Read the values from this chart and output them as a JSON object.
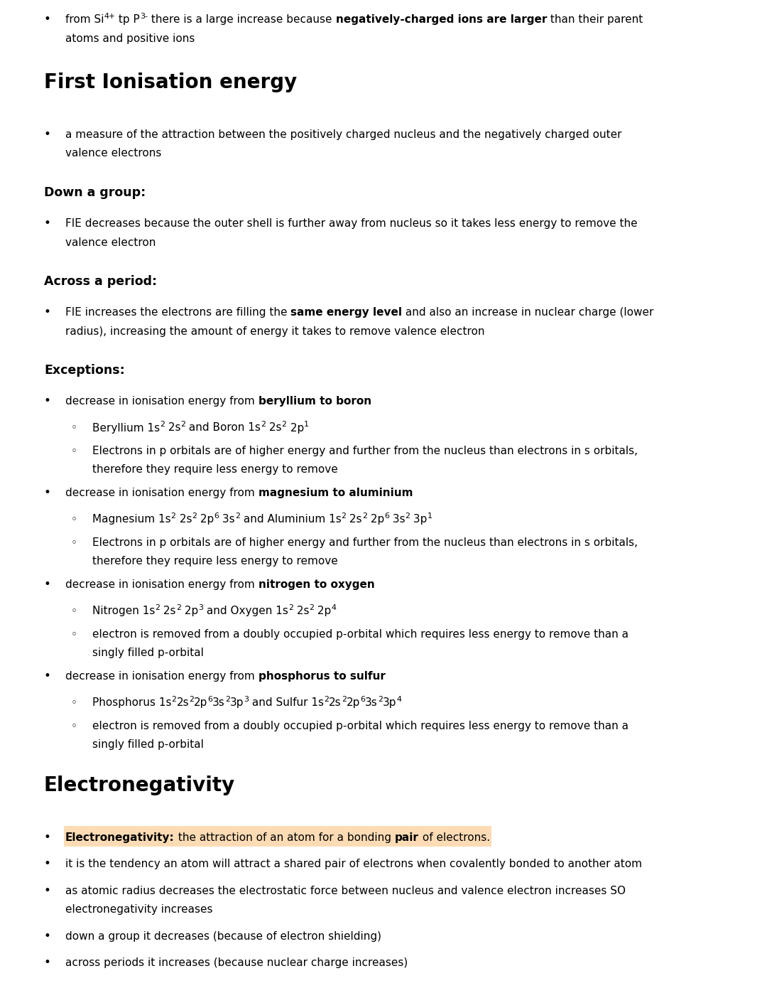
{
  "bg_color": "#ffffff",
  "sections": [
    {
      "type": "bullet",
      "parts": [
        {
          "text": "from Si",
          "style": "normal"
        },
        {
          "text": "4+",
          "style": "superscript"
        },
        {
          "text": " tp P",
          "style": "normal"
        },
        {
          "text": "3-",
          "style": "superscript"
        },
        {
          "text": " there is a large increase because ",
          "style": "normal"
        },
        {
          "text": "negatively-charged ions are larger",
          "style": "bold"
        },
        {
          "text": " than their parent",
          "style": "normal"
        }
      ],
      "line2_parts": [
        {
          "text": "atoms and positive ions",
          "style": "normal"
        }
      ]
    },
    {
      "type": "section_header",
      "text": "First Ionisation energy"
    },
    {
      "type": "bullet",
      "parts": [
        {
          "text": "a measure of the attraction between the positively charged nucleus and the negatively charged outer",
          "style": "normal"
        }
      ],
      "line2_parts": [
        {
          "text": "valence electrons",
          "style": "normal"
        }
      ]
    },
    {
      "type": "subsection_header",
      "text": "Down a group:"
    },
    {
      "type": "bullet",
      "parts": [
        {
          "text": "FIE decreases because the outer shell is further away from nucleus so it takes less energy to remove the",
          "style": "normal"
        }
      ],
      "line2_parts": [
        {
          "text": "valence electron",
          "style": "normal"
        }
      ]
    },
    {
      "type": "subsection_header",
      "text": "Across a period:"
    },
    {
      "type": "bullet",
      "parts": [
        {
          "text": "FIE increases the electrons are filling the ",
          "style": "normal"
        },
        {
          "text": "same energy level",
          "style": "bold"
        },
        {
          "text": " and also an increase in nuclear charge (lower",
          "style": "normal"
        }
      ],
      "line2_parts": [
        {
          "text": "radius), increasing the amount of energy it takes to remove valence electron",
          "style": "normal"
        }
      ]
    },
    {
      "type": "subsection_header",
      "text": "Exceptions:"
    },
    {
      "type": "bullet",
      "parts": [
        {
          "text": "decrease in ionisation energy from ",
          "style": "normal"
        },
        {
          "text": "beryllium to boron",
          "style": "bold"
        }
      ],
      "line2_parts": []
    },
    {
      "type": "sub_bullet",
      "parts": [
        {
          "text": "Beryllium 1s",
          "style": "normal"
        },
        {
          "text": "2",
          "style": "superscript"
        },
        {
          "text": " 2s",
          "style": "normal"
        },
        {
          "text": "2",
          "style": "superscript"
        },
        {
          "text": " and Boron 1s",
          "style": "normal"
        },
        {
          "text": "2",
          "style": "superscript"
        },
        {
          "text": " 2s",
          "style": "normal"
        },
        {
          "text": "2",
          "style": "superscript"
        },
        {
          "text": " 2p",
          "style": "normal"
        },
        {
          "text": "1",
          "style": "superscript"
        }
      ],
      "line2_parts": []
    },
    {
      "type": "sub_bullet",
      "parts": [
        {
          "text": "Electrons in p orbitals are of higher energy and further from the nucleus than electrons in s orbitals,",
          "style": "normal"
        }
      ],
      "line2_parts": [
        {
          "text": "therefore they require less energy to remove",
          "style": "normal"
        }
      ]
    },
    {
      "type": "bullet",
      "parts": [
        {
          "text": "decrease in ionisation energy from ",
          "style": "normal"
        },
        {
          "text": "magnesium to aluminium",
          "style": "bold"
        }
      ],
      "line2_parts": []
    },
    {
      "type": "sub_bullet",
      "parts": [
        {
          "text": "Magnesium 1s",
          "style": "normal"
        },
        {
          "text": "2",
          "style": "superscript"
        },
        {
          "text": " 2s",
          "style": "normal"
        },
        {
          "text": "2",
          "style": "superscript"
        },
        {
          "text": " 2p",
          "style": "normal"
        },
        {
          "text": "6",
          "style": "superscript"
        },
        {
          "text": " 3s",
          "style": "normal"
        },
        {
          "text": "2",
          "style": "superscript"
        },
        {
          "text": " and Aluminium 1s",
          "style": "normal"
        },
        {
          "text": "2",
          "style": "superscript"
        },
        {
          "text": " 2s",
          "style": "normal"
        },
        {
          "text": "2",
          "style": "superscript"
        },
        {
          "text": " 2p",
          "style": "normal"
        },
        {
          "text": "6",
          "style": "superscript"
        },
        {
          "text": " 3s",
          "style": "normal"
        },
        {
          "text": "2",
          "style": "superscript"
        },
        {
          "text": " 3p",
          "style": "normal"
        },
        {
          "text": "1",
          "style": "superscript"
        }
      ],
      "line2_parts": []
    },
    {
      "type": "sub_bullet",
      "parts": [
        {
          "text": "Electrons in p orbitals are of higher energy and further from the nucleus than electrons in s orbitals,",
          "style": "normal"
        }
      ],
      "line2_parts": [
        {
          "text": "therefore they require less energy to remove",
          "style": "normal"
        }
      ]
    },
    {
      "type": "bullet",
      "parts": [
        {
          "text": "decrease in ionisation energy from ",
          "style": "normal"
        },
        {
          "text": "nitrogen to oxygen",
          "style": "bold"
        }
      ],
      "line2_parts": []
    },
    {
      "type": "sub_bullet",
      "parts": [
        {
          "text": "Nitrogen 1s",
          "style": "normal"
        },
        {
          "text": "2",
          "style": "superscript"
        },
        {
          "text": " 2s",
          "style": "normal"
        },
        {
          "text": "2",
          "style": "superscript"
        },
        {
          "text": " 2p",
          "style": "normal"
        },
        {
          "text": "3",
          "style": "superscript"
        },
        {
          "text": " and Oxygen 1s",
          "style": "normal"
        },
        {
          "text": "2",
          "style": "superscript"
        },
        {
          "text": " 2s",
          "style": "normal"
        },
        {
          "text": "2",
          "style": "superscript"
        },
        {
          "text": " 2p",
          "style": "normal"
        },
        {
          "text": "4",
          "style": "superscript"
        }
      ],
      "line2_parts": []
    },
    {
      "type": "sub_bullet",
      "parts": [
        {
          "text": "electron is removed from a doubly occupied p-orbital which requires less energy to remove than a",
          "style": "normal"
        }
      ],
      "line2_parts": [
        {
          "text": "singly filled p-orbital",
          "style": "normal"
        }
      ]
    },
    {
      "type": "bullet",
      "parts": [
        {
          "text": "decrease in ionisation energy from ",
          "style": "normal"
        },
        {
          "text": "phosphorus to sulfur",
          "style": "bold"
        }
      ],
      "line2_parts": []
    },
    {
      "type": "sub_bullet",
      "parts": [
        {
          "text": "Phosphorus 1s",
          "style": "normal"
        },
        {
          "text": "2",
          "style": "superscript"
        },
        {
          "text": "2s",
          "style": "normal"
        },
        {
          "text": "2",
          "style": "superscript"
        },
        {
          "text": "2p",
          "style": "normal"
        },
        {
          "text": "6",
          "style": "superscript"
        },
        {
          "text": "3s",
          "style": "normal"
        },
        {
          "text": "2",
          "style": "superscript"
        },
        {
          "text": "3p",
          "style": "normal"
        },
        {
          "text": "3",
          "style": "superscript"
        },
        {
          "text": " and Sulfur 1s",
          "style": "normal"
        },
        {
          "text": "2",
          "style": "superscript"
        },
        {
          "text": "2s",
          "style": "normal"
        },
        {
          "text": "2",
          "style": "superscript"
        },
        {
          "text": "2p",
          "style": "normal"
        },
        {
          "text": "6",
          "style": "superscript"
        },
        {
          "text": "3s",
          "style": "normal"
        },
        {
          "text": "2",
          "style": "superscript"
        },
        {
          "text": "3p",
          "style": "normal"
        },
        {
          "text": "4",
          "style": "superscript"
        }
      ],
      "line2_parts": []
    },
    {
      "type": "sub_bullet",
      "parts": [
        {
          "text": "electron is removed from a doubly occupied p-orbital which requires less energy to remove than a",
          "style": "normal"
        }
      ],
      "line2_parts": [
        {
          "text": "singly filled p-orbital",
          "style": "normal"
        }
      ]
    },
    {
      "type": "section_header",
      "text": "Electronegativity"
    },
    {
      "type": "bullet_highlight",
      "highlight_color": "#FDDCB5",
      "parts": [
        {
          "text": "Electronegativity:",
          "style": "bold"
        },
        {
          "text": " the attraction of an atom for a bonding ",
          "style": "normal"
        },
        {
          "text": "pair",
          "style": "bold"
        },
        {
          "text": " of electrons.",
          "style": "normal"
        }
      ],
      "line2_parts": []
    },
    {
      "type": "bullet",
      "parts": [
        {
          "text": "it is the tendency an atom will attract a shared pair of electrons when covalently bonded to another atom",
          "style": "normal"
        }
      ],
      "line2_parts": []
    },
    {
      "type": "bullet",
      "parts": [
        {
          "text": "as atomic radius decreases the electrostatic force between nucleus and valence electron increases SO",
          "style": "normal"
        }
      ],
      "line2_parts": [
        {
          "text": "electronegativity increases",
          "style": "normal"
        }
      ]
    },
    {
      "type": "bullet",
      "parts": [
        {
          "text": "down a group it decreases (because of electron shielding)",
          "style": "normal"
        }
      ],
      "line2_parts": []
    },
    {
      "type": "bullet",
      "parts": [
        {
          "text": "across periods it increases (because nuclear charge increases)",
          "style": "normal"
        }
      ],
      "line2_parts": []
    }
  ]
}
